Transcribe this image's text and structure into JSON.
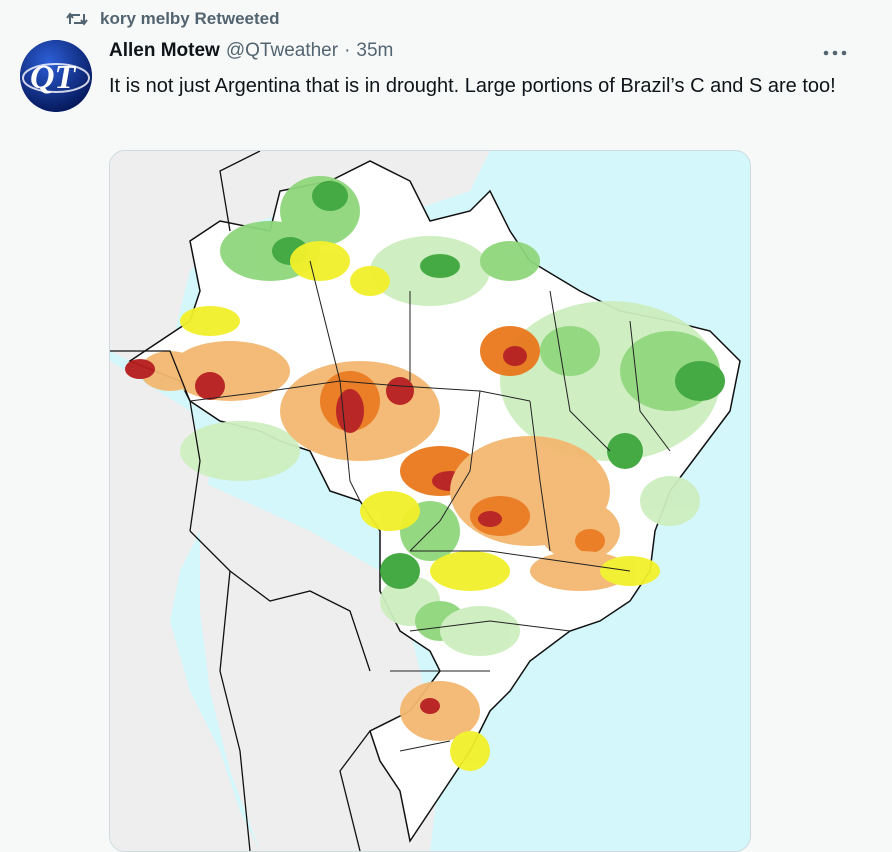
{
  "retweet": {
    "icon": "retweet-icon",
    "label": "kory melby Retweeted"
  },
  "tweet": {
    "avatar_icon": "qt-logo-icon",
    "avatar_text": "QT",
    "author_name": "Allen Motew",
    "handle": "@QTweather",
    "separator": "·",
    "time": "35m",
    "more_icon": "more-icon",
    "text": "It is not just Argentina that is in drought. Large portions of Brazil’s C and S are too!"
  },
  "media": {
    "type": "map-image",
    "ocean_color": "#d3f7fb",
    "land_color": "#efeeee",
    "drought_colors": [
      "#f2f02a",
      "#f3b870",
      "#e9791d",
      "#b71c1c"
    ],
    "wet_colors": [
      "#cdeebf",
      "#8fd67c",
      "#3ca53a"
    ]
  }
}
